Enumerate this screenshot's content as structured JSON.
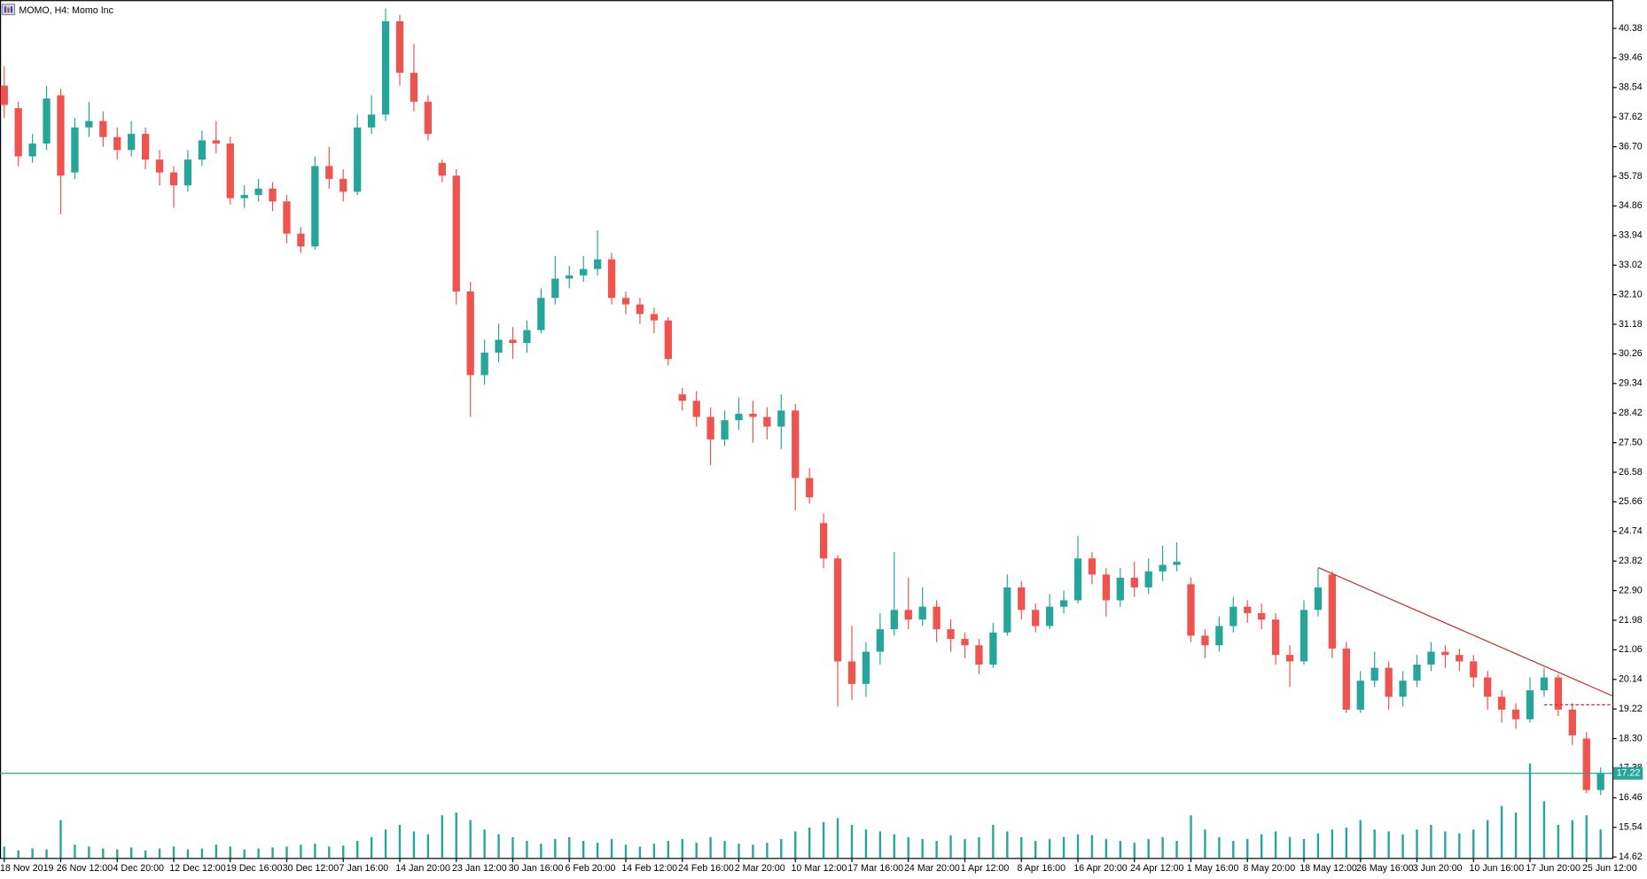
{
  "chart_data": {
    "type": "candlestick",
    "title": "MOMO, H4: Momo Inc",
    "up_color": "#26a69a",
    "down_color": "#ef5350",
    "trend_color": "#c62828",
    "current_color": "#26a69a",
    "ylim": [
      14.59,
      41.26
    ],
    "yticks": [
      40.38,
      39.46,
      38.54,
      37.62,
      {
        "value": 36.7,
        "label": "36.70"
      },
      35.78,
      34.86,
      33.94,
      33.02,
      {
        "value": 32.1,
        "label": "32.10"
      },
      31.18,
      30.26,
      29.34,
      28.42,
      {
        "value": 27.5,
        "label": "27.50"
      },
      26.58,
      25.66,
      24.74,
      23.82,
      {
        "value": 22.9,
        "label": "22.90"
      },
      21.98,
      21.06,
      20.14,
      19.22,
      {
        "value": 18.3,
        "label": "18.30"
      },
      17.38,
      16.46,
      15.54,
      14.62
    ],
    "categories": [
      "18 Nov 2019",
      null,
      null,
      null,
      "26 Nov 12:00",
      null,
      null,
      null,
      "4 Dec 20:00",
      null,
      null,
      null,
      "12 Dec 12:00",
      null,
      null,
      null,
      "19 Dec 16:00",
      null,
      null,
      null,
      "30 Dec 12:00",
      null,
      null,
      null,
      "7 Jan 16:00",
      null,
      null,
      null,
      "14 Jan 20:00",
      null,
      null,
      null,
      "23 Jan 12:00",
      null,
      null,
      null,
      "30 Jan 16:00",
      null,
      null,
      null,
      "6 Feb 20:00",
      null,
      null,
      null,
      "14 Feb 12:00",
      null,
      null,
      null,
      "24 Feb 16:00",
      null,
      null,
      null,
      "2 Mar 20:00",
      null,
      null,
      null,
      "10 Mar 12:00",
      null,
      null,
      null,
      "17 Mar 16:00",
      null,
      null,
      null,
      "24 Mar 20:00",
      null,
      null,
      null,
      "1 Apr 12:00",
      null,
      null,
      null,
      "8 Apr 16:00",
      null,
      null,
      null,
      "16 Apr 20:00",
      null,
      null,
      null,
      "24 Apr 12:00",
      null,
      null,
      null,
      "1 May 16:00",
      null,
      null,
      null,
      "8 May 20:00",
      null,
      null,
      null,
      "18 May 12:00",
      null,
      null,
      null,
      "26 May 16:00",
      null,
      null,
      null,
      "3 Jun 20:00",
      null,
      null,
      null,
      "10 Jun 16:00",
      null,
      null,
      null,
      "17 Jun 20:00",
      null,
      null,
      null,
      "25 Jun 12:00",
      null
    ],
    "open": [
      38.6,
      37.9,
      36.4,
      36.8,
      38.3,
      35.9,
      37.3,
      37.5,
      37.0,
      36.6,
      37.1,
      36.3,
      35.9,
      35.5,
      36.3,
      36.9,
      36.8,
      35.1,
      35.2,
      35.4,
      35.0,
      34.0,
      33.6,
      36.1,
      35.7,
      35.3,
      37.3,
      37.7,
      40.6,
      39.0,
      38.1,
      36.2,
      35.8,
      32.2,
      29.6,
      30.3,
      30.7,
      30.6,
      31.0,
      32.0,
      32.6,
      32.7,
      32.9,
      33.2,
      32.0,
      31.8,
      31.5,
      31.3,
      29.0,
      28.8,
      28.3,
      27.6,
      28.2,
      28.4,
      28.3,
      28.0,
      28.5,
      26.4,
      25.0,
      23.9,
      20.7,
      20.0,
      21.0,
      21.7,
      22.3,
      22.0,
      22.4,
      21.7,
      21.4,
      21.2,
      20.6,
      21.6,
      23.0,
      22.3,
      21.8,
      22.4,
      22.6,
      23.9,
      23.4,
      22.6,
      23.3,
      23.0,
      23.5,
      23.7,
      23.1,
      21.5,
      21.2,
      21.8,
      22.4,
      22.2,
      22.0,
      20.9,
      20.7,
      22.3,
      23.4,
      21.1,
      19.2,
      20.1,
      20.5,
      19.6,
      20.1,
      20.6,
      21.0,
      20.9,
      20.7,
      20.2,
      19.6,
      19.2,
      18.9,
      19.8,
      20.2,
      19.2,
      18.3,
      16.7
    ],
    "high": [
      39.2,
      38.1,
      37.1,
      38.6,
      38.5,
      37.6,
      38.1,
      37.8,
      37.3,
      37.5,
      37.3,
      36.6,
      36.1,
      36.6,
      37.2,
      37.5,
      37.0,
      35.5,
      35.7,
      35.6,
      35.2,
      34.2,
      36.4,
      36.7,
      36.0,
      37.7,
      38.3,
      41.0,
      40.8,
      39.9,
      38.3,
      36.3,
      36.0,
      32.5,
      30.7,
      31.2,
      31.1,
      31.3,
      32.3,
      33.3,
      33.0,
      33.3,
      34.1,
      33.4,
      32.2,
      32.0,
      31.7,
      31.4,
      29.2,
      29.1,
      28.6,
      28.5,
      28.9,
      28.8,
      28.6,
      29.0,
      28.7,
      26.7,
      25.3,
      24.0,
      21.8,
      21.3,
      22.2,
      24.1,
      23.3,
      23.0,
      22.6,
      22.0,
      21.6,
      21.4,
      21.9,
      23.4,
      23.2,
      22.5,
      22.8,
      22.9,
      24.6,
      24.1,
      23.6,
      23.6,
      23.8,
      23.9,
      24.3,
      24.4,
      23.3,
      21.7,
      22.1,
      22.7,
      22.6,
      22.5,
      22.2,
      21.2,
      22.6,
      23.6,
      23.5,
      21.3,
      20.4,
      21.0,
      20.7,
      20.4,
      20.9,
      21.3,
      21.2,
      21.1,
      20.9,
      20.4,
      19.8,
      19.4,
      20.2,
      20.5,
      20.3,
      19.4,
      18.5,
      17.4
    ],
    "low": [
      37.6,
      36.1,
      36.2,
      36.6,
      34.6,
      35.7,
      37.0,
      36.7,
      36.3,
      36.4,
      36.0,
      35.5,
      34.8,
      35.3,
      36.1,
      36.5,
      34.9,
      34.8,
      35.0,
      34.7,
      33.7,
      33.4,
      33.5,
      35.4,
      35.0,
      35.2,
      37.1,
      37.5,
      38.6,
      37.8,
      36.9,
      35.6,
      31.8,
      28.3,
      29.3,
      30.0,
      30.1,
      30.3,
      30.9,
      31.8,
      32.3,
      32.5,
      32.7,
      31.8,
      31.5,
      31.2,
      30.9,
      29.9,
      28.5,
      28.0,
      26.8,
      27.4,
      27.9,
      27.5,
      27.6,
      27.3,
      25.4,
      25.6,
      23.6,
      19.3,
      19.5,
      19.6,
      20.6,
      21.5,
      21.7,
      21.8,
      21.3,
      21.0,
      20.8,
      20.3,
      20.5,
      21.5,
      22.0,
      21.6,
      21.7,
      22.2,
      22.5,
      23.1,
      22.1,
      22.4,
      22.7,
      22.8,
      23.2,
      23.5,
      21.3,
      20.8,
      21.0,
      21.6,
      21.9,
      21.7,
      20.6,
      19.9,
      20.6,
      22.1,
      20.8,
      19.1,
      19.1,
      19.9,
      19.2,
      19.3,
      19.9,
      20.4,
      20.5,
      20.4,
      19.9,
      19.2,
      18.8,
      18.6,
      18.8,
      19.6,
      19.0,
      18.1,
      16.6,
      16.55
    ],
    "close": [
      38.0,
      36.4,
      36.8,
      38.2,
      35.8,
      37.3,
      37.5,
      37.0,
      36.6,
      37.1,
      36.3,
      35.9,
      35.5,
      36.3,
      36.9,
      36.8,
      35.1,
      35.2,
      35.4,
      35.0,
      34.0,
      33.6,
      36.1,
      35.7,
      35.3,
      37.3,
      37.7,
      40.6,
      39.0,
      38.1,
      37.1,
      35.8,
      32.2,
      29.6,
      30.3,
      30.7,
      30.6,
      31.0,
      32.0,
      32.6,
      32.7,
      32.9,
      33.2,
      32.0,
      31.8,
      31.5,
      31.3,
      30.1,
      28.8,
      28.3,
      27.6,
      28.2,
      28.4,
      28.3,
      28.0,
      28.5,
      26.4,
      25.8,
      23.9,
      20.7,
      20.0,
      21.0,
      21.7,
      22.3,
      22.0,
      22.4,
      21.7,
      21.4,
      21.2,
      20.6,
      21.6,
      23.0,
      22.3,
      21.8,
      22.4,
      22.6,
      23.9,
      23.4,
      22.6,
      23.3,
      23.0,
      23.5,
      23.7,
      23.8,
      21.5,
      21.2,
      21.8,
      22.4,
      22.2,
      22.0,
      20.9,
      20.7,
      22.3,
      23.0,
      21.1,
      19.2,
      20.1,
      20.5,
      19.6,
      20.1,
      20.6,
      21.0,
      20.9,
      20.7,
      20.2,
      19.6,
      19.2,
      18.9,
      19.8,
      20.2,
      19.2,
      18.4,
      16.7,
      17.22
    ],
    "volume": [
      12,
      8,
      10,
      9,
      40,
      14,
      12,
      10,
      9,
      11,
      8,
      10,
      12,
      9,
      10,
      14,
      12,
      9,
      10,
      11,
      12,
      14,
      15,
      12,
      13,
      18,
      22,
      30,
      35,
      28,
      25,
      45,
      48,
      40,
      30,
      25,
      22,
      18,
      15,
      20,
      22,
      18,
      16,
      20,
      14,
      12,
      15,
      18,
      20,
      16,
      22,
      18,
      15,
      14,
      16,
      20,
      28,
      32,
      38,
      42,
      35,
      30,
      28,
      25,
      22,
      20,
      18,
      24,
      20,
      22,
      35,
      28,
      22,
      18,
      20,
      22,
      25,
      24,
      20,
      18,
      16,
      20,
      22,
      18,
      45,
      30,
      22,
      18,
      20,
      25,
      28,
      22,
      20,
      26,
      30,
      32,
      40,
      30,
      28,
      25,
      30,
      35,
      28,
      26,
      30,
      40,
      55,
      48,
      100,
      60,
      35,
      40,
      45,
      30
    ],
    "trendline": [
      23.62,
      19.63
    ],
    "dashed_level": 19.35
  }
}
